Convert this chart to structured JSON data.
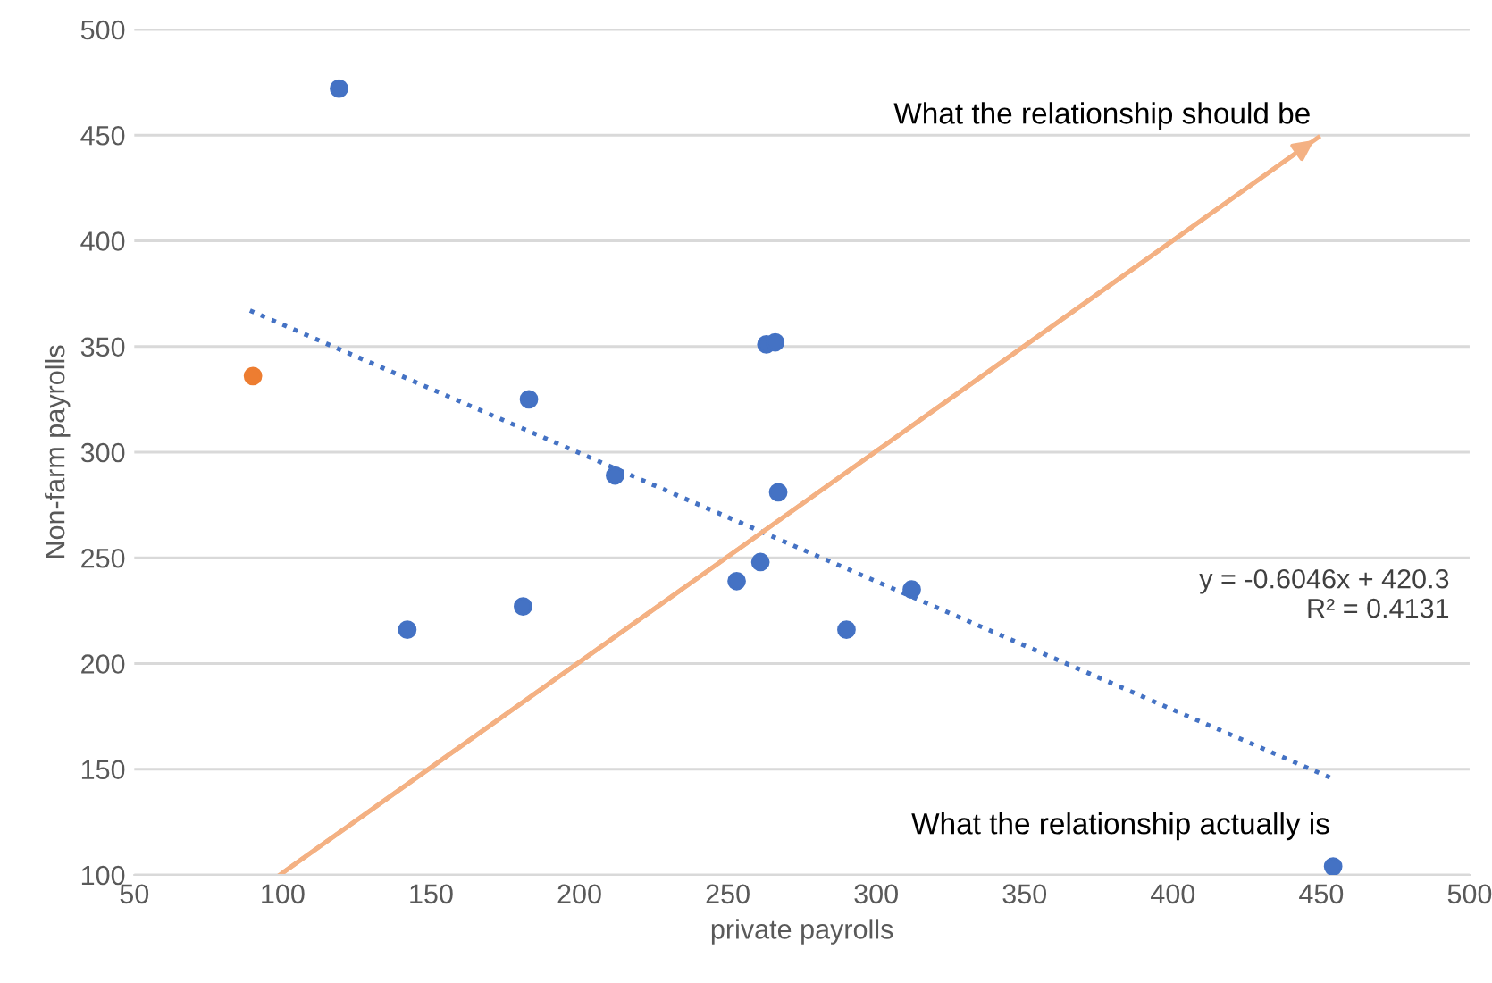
{
  "chart_data": {
    "type": "scatter",
    "xlabel": "private payrolls",
    "ylabel": "Non-farm payrolls",
    "xlim": [
      50,
      500
    ],
    "xticks": [
      50,
      100,
      150,
      200,
      250,
      300,
      350,
      400,
      450,
      500
    ],
    "ylim": [
      100,
      500
    ],
    "yticks": [
      100,
      150,
      200,
      250,
      300,
      350,
      400,
      450,
      500
    ],
    "grid": "y",
    "legend": false,
    "series": [
      {
        "marker": "circle",
        "color": "#4472c4",
        "x": [
          119,
          142,
          181,
          183,
          212,
          253,
          261,
          263,
          266,
          267,
          290,
          312,
          454
        ],
        "values": [
          472,
          216,
          227,
          325,
          289,
          239,
          248,
          351,
          352,
          281,
          216,
          235,
          104
        ]
      },
      {
        "marker": "circle",
        "color": "#ed7d31",
        "x": [
          90
        ],
        "values": [
          336
        ]
      },
      {
        "type": "line",
        "color": "#4472c4",
        "line_style": "dotted",
        "x": [
          89,
          453
        ],
        "values": [
          367,
          146
        ],
        "marker": "none"
      },
      {
        "type": "line",
        "color": "#f4b183",
        "line_style": "solid",
        "marker": "none",
        "x": [
          99,
          449
        ],
        "values": [
          100,
          449
        ]
      }
    ],
    "annotations": [
      {
        "text": "What the relationship should be",
        "x": 449,
        "y": 449
      },
      {
        "text": "What the relationship actually is",
        "x": 453,
        "y": 146
      },
      "y = -0.6046x + 420.3\nR² = 0.4131"
    ]
  }
}
